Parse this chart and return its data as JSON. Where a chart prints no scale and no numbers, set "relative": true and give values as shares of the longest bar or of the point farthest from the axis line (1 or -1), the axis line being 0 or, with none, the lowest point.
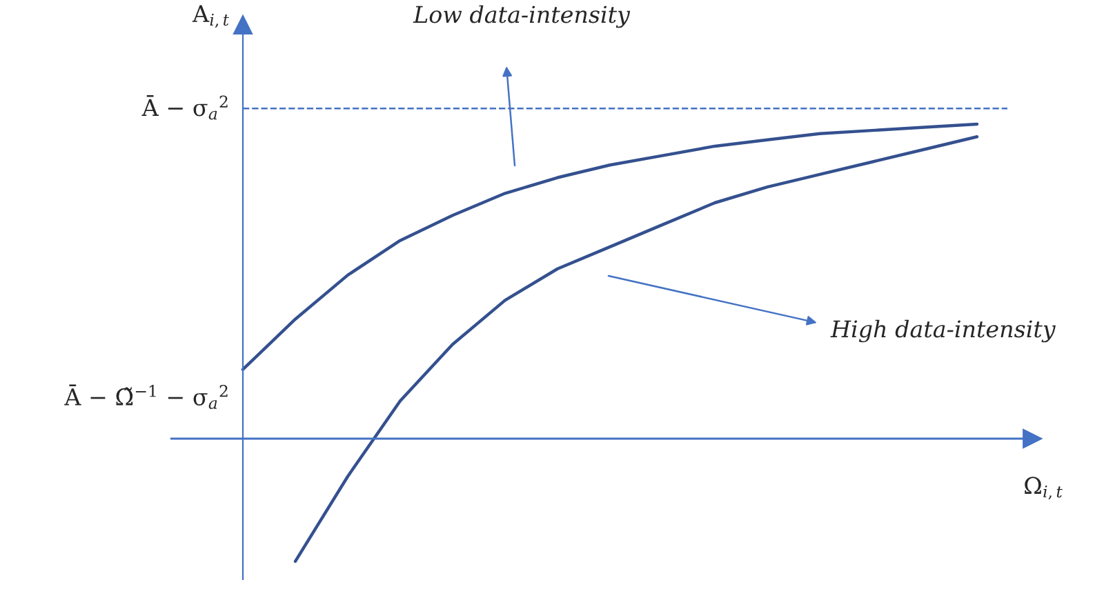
{
  "chart_data": {
    "type": "line",
    "relative": true,
    "xlabel": "Ω$_{i,t}$",
    "ylabel": "A$_{i,t}$",
    "categories": [
      null,
      null,
      null,
      null,
      null,
      null,
      null,
      null,
      null,
      null,
      null,
      null,
      null,
      null,
      null
    ],
    "series": [
      {
        "color": "#34508f",
        "values": [
          0.22,
          0.38,
          0.52,
          0.63,
          0.71,
          0.78,
          0.83,
          0.87,
          0.9,
          0.93,
          0.95,
          0.97,
          0.98,
          0.99,
          1.0
        ]
      },
      {
        "color": "#34508f",
        "values": [
          null,
          -0.39,
          -0.12,
          0.12,
          0.3,
          0.44,
          0.54,
          0.61,
          0.68,
          0.75,
          0.8,
          0.84,
          0.88,
          0.92,
          0.96
        ]
      }
    ],
    "ref_lines": [
      {
        "axis": "y",
        "value": 0,
        "color": "#4472c4",
        "line_style": "solid"
      },
      {
        "axis": "y",
        "value": 1.05,
        "label": "Ā − σ$_{a}$$^{2}$",
        "color": "#4472c4",
        "line_style": "dashed"
      }
    ],
    "annotations": [
      "Ā − Ω̃$^{−1}$ − σ$_{a}$$^{2}$",
      "Low data-intensity",
      "High data-intensity"
    ],
    "legend": false,
    "marker": "none",
    "line_style": "solid"
  }
}
